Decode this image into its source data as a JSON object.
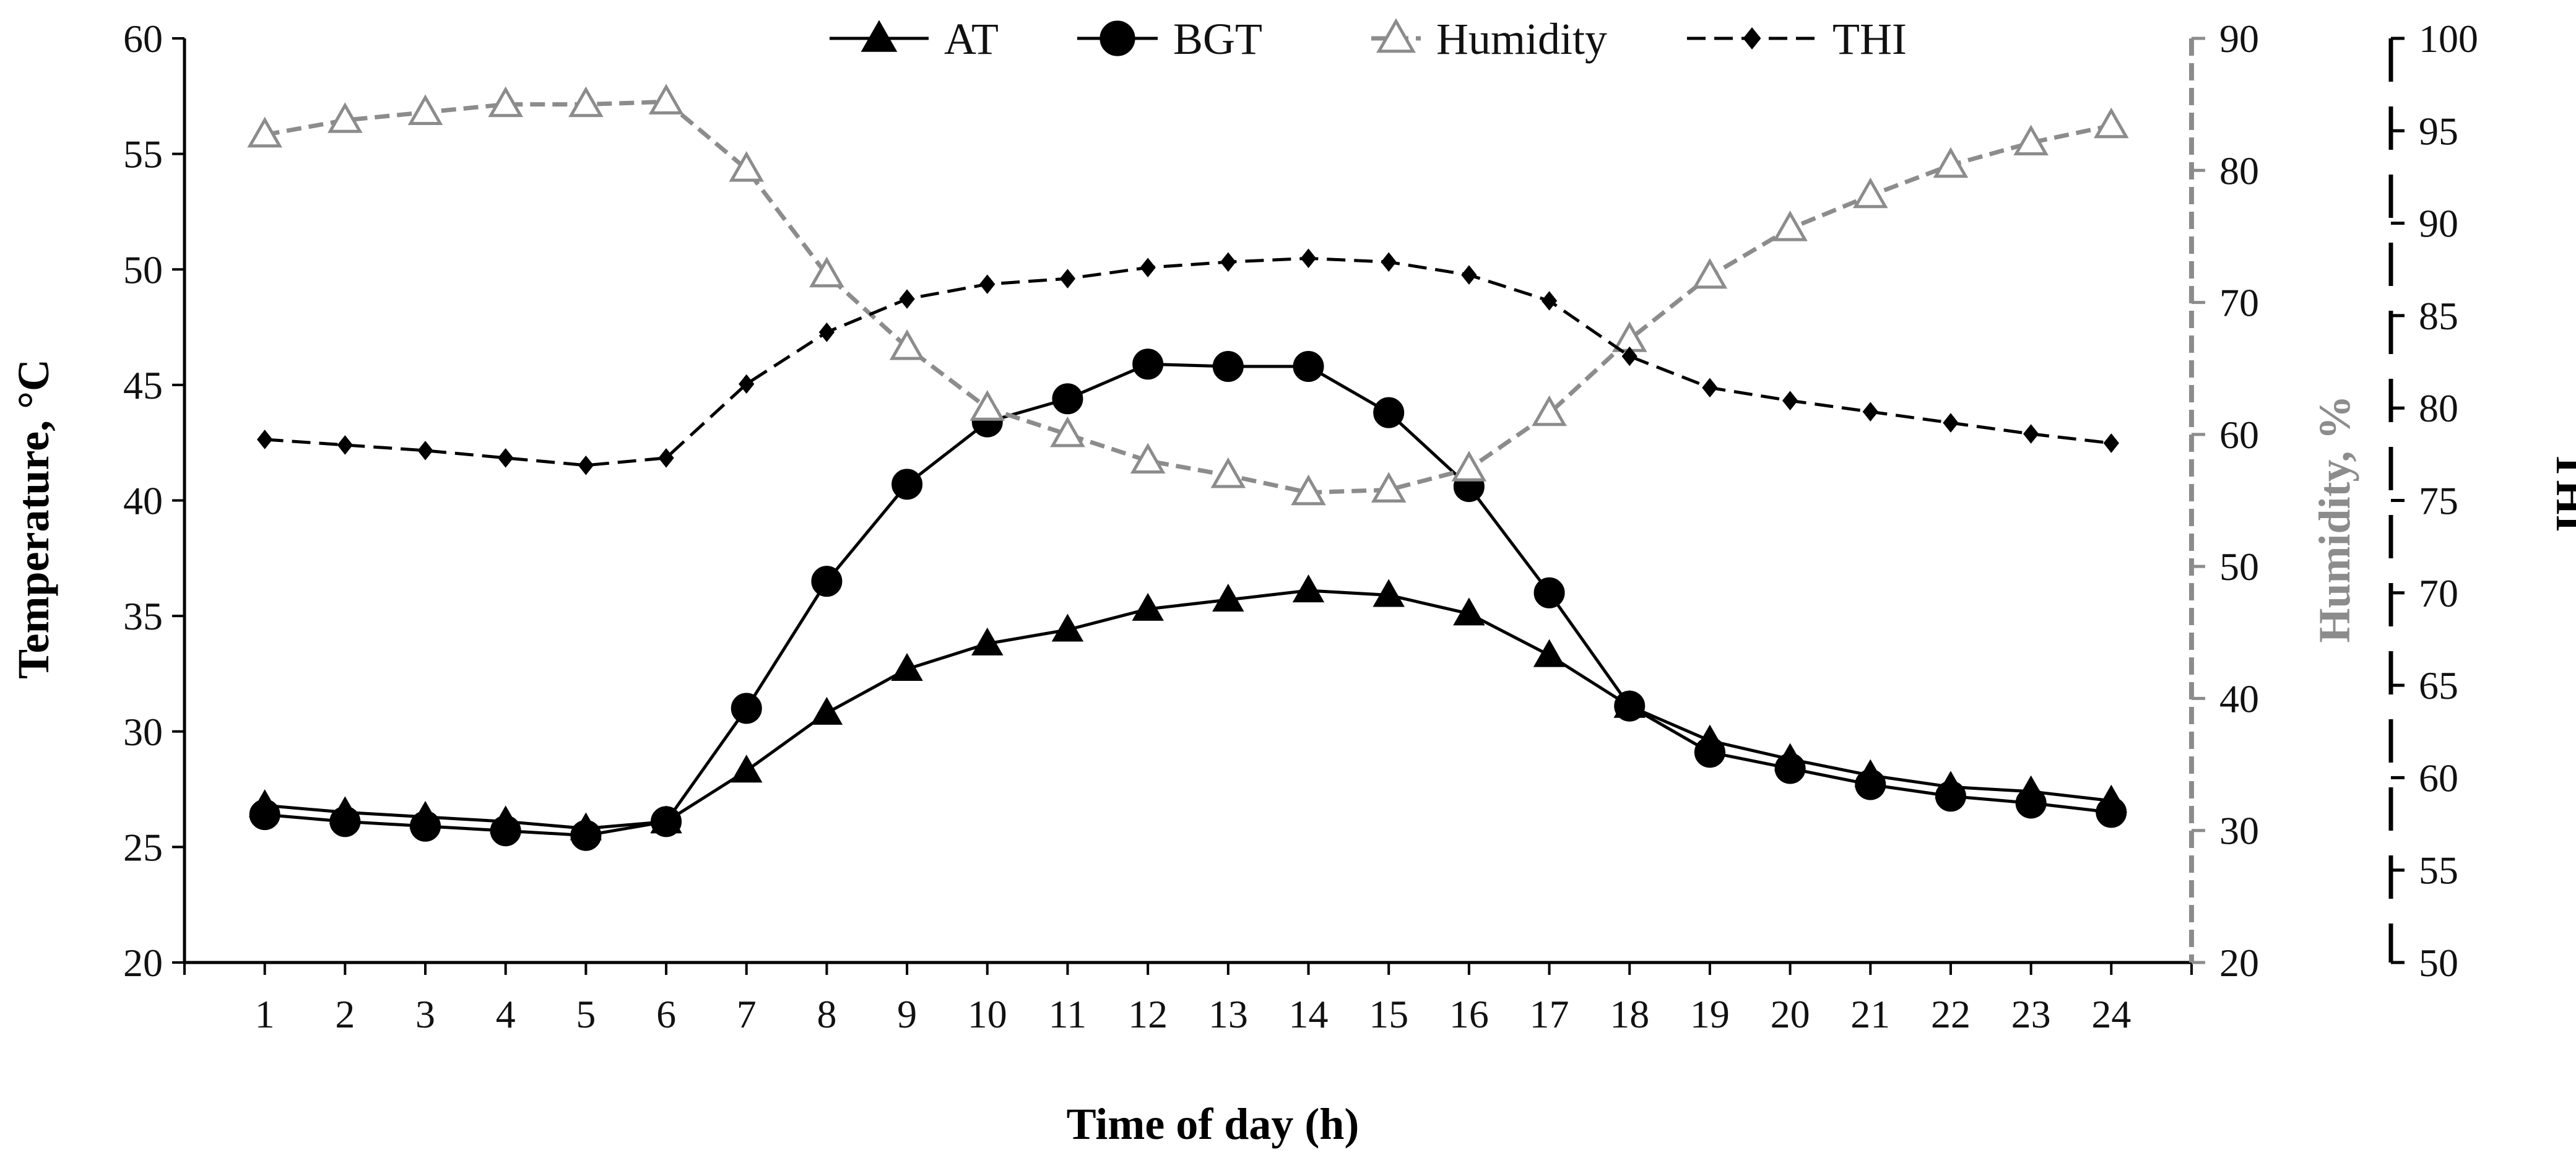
{
  "chart_data": {
    "type": "line",
    "xlabel": "Time of day (h)",
    "categories": [
      "1",
      "2",
      "3",
      "4",
      "5",
      "6",
      "7",
      "8",
      "9",
      "10",
      "11",
      "12",
      "13",
      "14",
      "15",
      "16",
      "17",
      "18",
      "19",
      "20",
      "21",
      "22",
      "23",
      "24"
    ],
    "axes": {
      "left": {
        "label": "Temperature, °C",
        "ylim": [
          20,
          60
        ],
        "ticks": [
          20,
          25,
          30,
          35,
          40,
          45,
          50,
          55,
          60
        ],
        "color": "#000000"
      },
      "humidity": {
        "label": "Humidity, %",
        "ylim": [
          20,
          90
        ],
        "ticks": [
          20,
          30,
          40,
          50,
          60,
          70,
          80,
          90
        ],
        "color": "#8c8c8c"
      },
      "thi": {
        "label": "THI",
        "ylim": [
          50,
          100
        ],
        "ticks": [
          50,
          55,
          60,
          65,
          70,
          75,
          80,
          85,
          90,
          95,
          100
        ],
        "color": "#000000"
      }
    },
    "series": [
      {
        "name": "AT",
        "axis": "left",
        "marker": "triangle-filled",
        "line": "solid",
        "color": "#000000",
        "values": [
          26.8,
          26.5,
          26.3,
          26.1,
          25.8,
          26.1,
          28.3,
          30.8,
          32.7,
          33.8,
          34.4,
          35.3,
          35.7,
          36.1,
          35.9,
          35.1,
          33.3,
          31.1,
          29.6,
          28.8,
          28.1,
          27.6,
          27.4,
          27.0
        ]
      },
      {
        "name": "BGT",
        "axis": "left",
        "marker": "circle-filled",
        "line": "solid",
        "color": "#000000",
        "values": [
          26.4,
          26.1,
          25.9,
          25.7,
          25.5,
          26.1,
          31.0,
          36.5,
          40.7,
          43.4,
          44.4,
          45.9,
          45.8,
          45.8,
          43.8,
          40.6,
          36.0,
          31.1,
          29.1,
          28.4,
          27.7,
          27.2,
          26.9,
          26.5
        ]
      },
      {
        "name": "Humidity",
        "axis": "humidity",
        "marker": "triangle-open",
        "line": "dashed",
        "color": "#8c8c8c",
        "values": [
          82.7,
          83.8,
          84.4,
          85.0,
          85.0,
          85.2,
          80.1,
          72.1,
          66.6,
          62.0,
          60.0,
          58.0,
          56.9,
          55.6,
          55.8,
          57.4,
          61.6,
          67.2,
          72.0,
          75.6,
          78.1,
          80.4,
          82.1,
          83.4
        ]
      },
      {
        "name": "THI",
        "axis": "thi",
        "marker": "diamond-filled",
        "line": "dashed",
        "color": "#000000",
        "values": [
          78.3,
          78.0,
          77.7,
          77.3,
          76.9,
          77.3,
          81.3,
          84.1,
          85.9,
          86.7,
          87.0,
          87.6,
          87.9,
          88.1,
          87.9,
          87.2,
          85.8,
          82.8,
          81.1,
          80.4,
          79.8,
          79.2,
          78.6,
          78.1
        ]
      }
    ],
    "legend": {
      "position": "top",
      "entries": [
        "AT",
        "BGT",
        "Humidity",
        "THI"
      ]
    },
    "grid": false
  }
}
